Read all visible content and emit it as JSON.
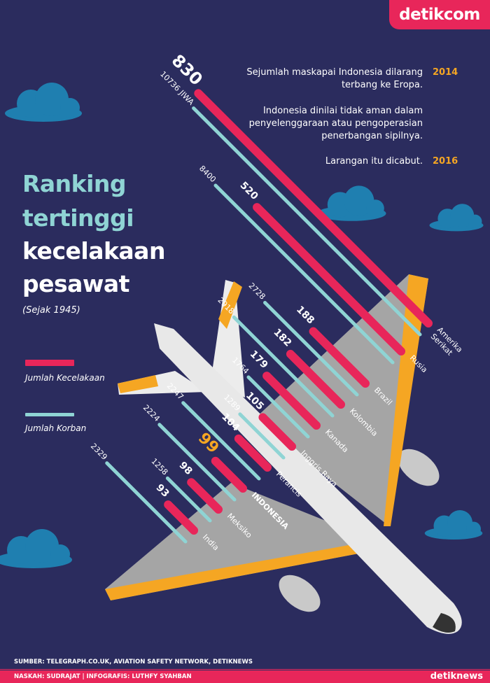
{
  "brand": {
    "logo": "detikcom",
    "footer_logo": "detiknews"
  },
  "title": {
    "line1": "Ranking",
    "line2": "tertinggi",
    "line3": "kecelakaan",
    "line4": "pesawat",
    "since": "(Sejak 1945)"
  },
  "legend": {
    "accidents": "Jumlah Kecelakaan",
    "victims": "Jumlah Korban"
  },
  "notes": [
    {
      "text": "Sejumlah maskapai Indonesia dilarang terbang ke Eropa.",
      "year": "2014"
    },
    {
      "text": "Indonesia dinilai tidak aman dalam penyelenggaraan atau pengoperasian penerbangan sipilnya.",
      "year": ""
    },
    {
      "text": "Larangan itu dicabut.",
      "year": "2016"
    }
  ],
  "footer": {
    "source": "SUMBER: TELEGRAPH.CO.UK, AVIATION SAFETY NETWORK, DETIKNEWS",
    "credits": "NASKAH: SUDRAJAT | INFOGRAFIS: LUTHFY SYAHBAN"
  },
  "colors": {
    "accidents": "#e8265a",
    "victims": "#8fd4d4",
    "highlight": "#f5a623",
    "background": "#2b2c5e"
  },
  "chart_data": {
    "type": "bar",
    "title": "Ranking tertinggi kecelakaan pesawat",
    "orientation": "diagonal",
    "categories": [
      "Amerika Serikat",
      "Rusia",
      "Brazil",
      "Kolombia",
      "Kanada",
      "Inggris Raya",
      "Perancis",
      "INDONESIA",
      "Meksiko",
      "India"
    ],
    "series": [
      {
        "name": "Jumlah Kecelakaan",
        "values": [
          830,
          520,
          188,
          182,
          179,
          105,
          104,
          99,
          98,
          93
        ],
        "labels": [
          "830",
          "520",
          "188",
          "182",
          "179",
          "105",
          "104",
          "99",
          "98",
          "93"
        ]
      },
      {
        "name": "Jumlah Korban",
        "values": [
          10736,
          8400,
          2728,
          2918,
          1764,
          1289,
          2247,
          2224,
          1258,
          2329
        ],
        "labels": [
          "10736 JIWA",
          "8400",
          "2728",
          "2918",
          "1764",
          "1289",
          "2247",
          "2224",
          "1258",
          "2329"
        ]
      }
    ],
    "highlight": "INDONESIA"
  }
}
